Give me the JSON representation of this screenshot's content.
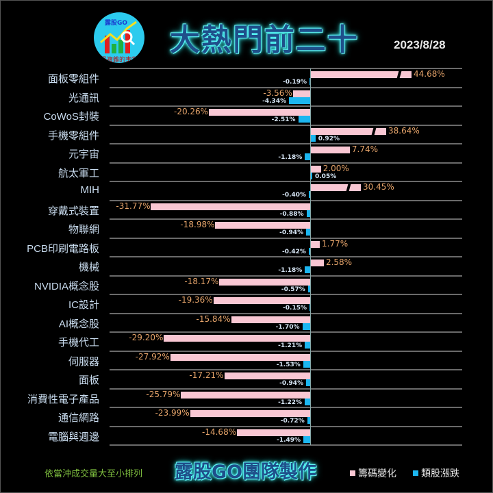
{
  "header": {
    "title": "大熱門前二十",
    "date": "2023/8/28",
    "logo": {
      "brand": "露股GO",
      "slogan": "最複雜的事物"
    }
  },
  "footer": {
    "note": "依當沖成交量大至小排列",
    "brand": "露股GO團隊製作"
  },
  "legend": [
    {
      "label": "籌碼變化",
      "color": "#f9c7d3"
    },
    {
      "label": "類股漲跌",
      "color": "#1cb6f0"
    }
  ],
  "colors": {
    "chip_change": "#f9c7d3",
    "sector_change": "#1cb6f0",
    "chip_label": "#e7a56b",
    "background": "#000000"
  },
  "chart_data": {
    "type": "bar",
    "orientation": "horizontal",
    "title": "大熱門前二十",
    "subtitle": "2023/8/28",
    "categories": [
      "面板零組件",
      "光通訊",
      "CoWoS封裝",
      "手機零組件",
      "元宇宙",
      "航太軍工",
      "MIH",
      "穿戴式裝置",
      "物聯網",
      "PCB印刷電路板",
      "機械",
      "NVIDIA概念股",
      "IC設計",
      "AI概念股",
      "手機代工",
      "伺服器",
      "面板",
      "消費性電子產品",
      "通信網路",
      "電腦與週邊"
    ],
    "series": [
      {
        "name": "籌碼變化",
        "values": [
          44.68,
          -3.56,
          -20.26,
          38.64,
          7.74,
          2.0,
          30.45,
          -31.77,
          -18.98,
          1.77,
          2.58,
          -18.17,
          -19.36,
          -15.84,
          -29.2,
          -27.92,
          -17.21,
          -25.79,
          -23.99,
          -14.68
        ],
        "labels": [
          "44.68%",
          "-3.56%",
          "-20.26%",
          "38.64%",
          "7.74%",
          "2.00%",
          "30.45%",
          "-31.77%",
          "-18.98%",
          "1.77%",
          "2.58%",
          "-18.17%",
          "-19.36%",
          "-15.84%",
          "-29.20%",
          "-27.92%",
          "-17.21%",
          "-25.79%",
          "-23.99%",
          "-14.68%"
        ],
        "broken_axis": [
          true,
          false,
          false,
          true,
          false,
          false,
          true,
          false,
          false,
          false,
          false,
          false,
          false,
          false,
          false,
          false,
          false,
          false,
          false,
          false
        ]
      },
      {
        "name": "類股漲跌",
        "values": [
          -0.19,
          -4.34,
          -2.51,
          0.92,
          -1.18,
          0.05,
          -0.4,
          -0.88,
          -0.94,
          -0.42,
          -1.18,
          -0.57,
          -0.15,
          -1.7,
          -1.21,
          -1.53,
          -0.94,
          -1.22,
          -0.72,
          -1.49
        ],
        "labels": [
          "-0.19%",
          "-4.34%",
          "-2.51%",
          "0.92%",
          "-1.18%",
          "0.05%",
          "-0.40%",
          "-0.88%",
          "-0.94%",
          "-0.42%",
          "-1.18%",
          "-0.57%",
          "-0.15%",
          "-1.70%",
          "-1.21%",
          "-1.53%",
          "-0.94%",
          "-1.22%",
          "-0.72%",
          "-1.49%"
        ]
      }
    ],
    "xlabel": "",
    "ylabel": "",
    "grid": true,
    "legend_position": "bottom-right",
    "note": "依當沖成交量大至小排列"
  }
}
